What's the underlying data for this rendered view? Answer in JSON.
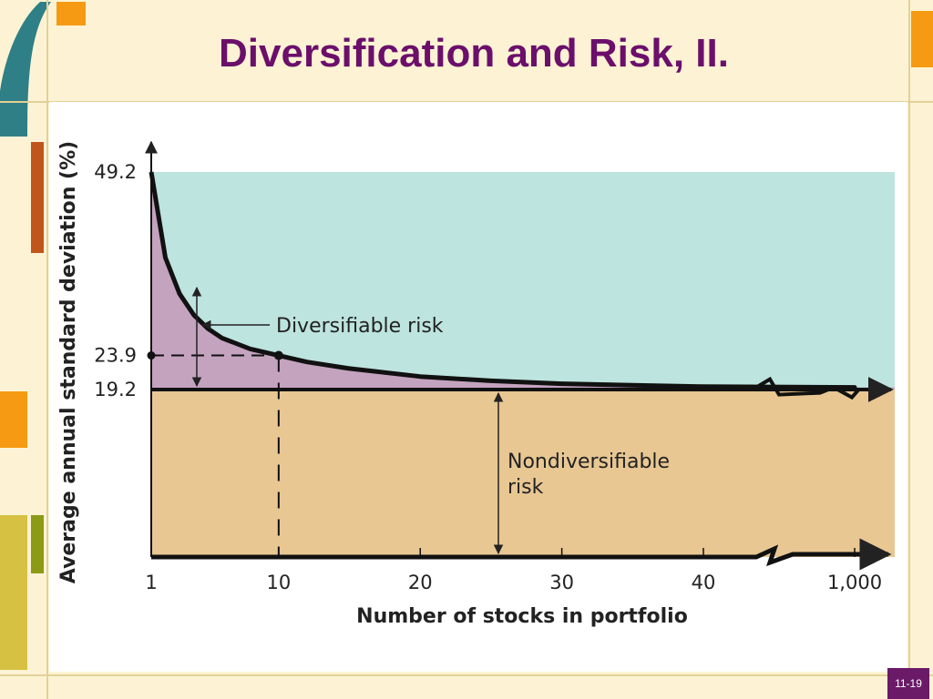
{
  "slide": {
    "title": "Diversification and Risk, II.",
    "page_number": "11-19"
  },
  "colors": {
    "title": "#6b0f6b",
    "background": "#fdf3d4",
    "diversifiable_fill": "#c4a3bf",
    "nondiversifiable_fill": "#e8c793",
    "upper_region_fill": "#bde4de",
    "decoration_teal": "#2f7f86",
    "decoration_orange": "#f59a12",
    "decoration_rust": "#c0561c",
    "decoration_olive": "#8c9a16",
    "decoration_yellow": "#d6c142",
    "page_badge": "#6a1a66"
  },
  "chart_data": {
    "type": "area",
    "xlabel": "Number of stocks in portfolio",
    "ylabel": "Average annual standard deviation (%)",
    "x_ticks": [
      "1",
      "10",
      "20",
      "30",
      "40",
      "1,000"
    ],
    "y_ticks": [
      "49.2",
      "23.9",
      "19.2"
    ],
    "x_axis_break": "between 40 and 1,000",
    "y_range": [
      0,
      49.2
    ],
    "series": [
      {
        "x": [
          1,
          2,
          3,
          4,
          5,
          6,
          8,
          10,
          12,
          15,
          20,
          25,
          30,
          35,
          40,
          44,
          1000
        ],
        "values": [
          49.2,
          37.4,
          32.4,
          29.5,
          27.6,
          26.3,
          24.8,
          23.9,
          23.0,
          22.1,
          21.0,
          20.4,
          20.0,
          19.8,
          19.6,
          19.5,
          19.2
        ]
      }
    ],
    "reference_lines": [
      {
        "y": 19.2,
        "type": "horizontal"
      },
      {
        "x": 10,
        "y": 23.9,
        "type": "dashed"
      }
    ],
    "annotations": [
      {
        "text": "Diversifiable risk"
      },
      {
        "text": "Nondiversifiable\nrisk",
        "lines": [
          "Nondiversifiable",
          "risk"
        ]
      }
    ]
  }
}
